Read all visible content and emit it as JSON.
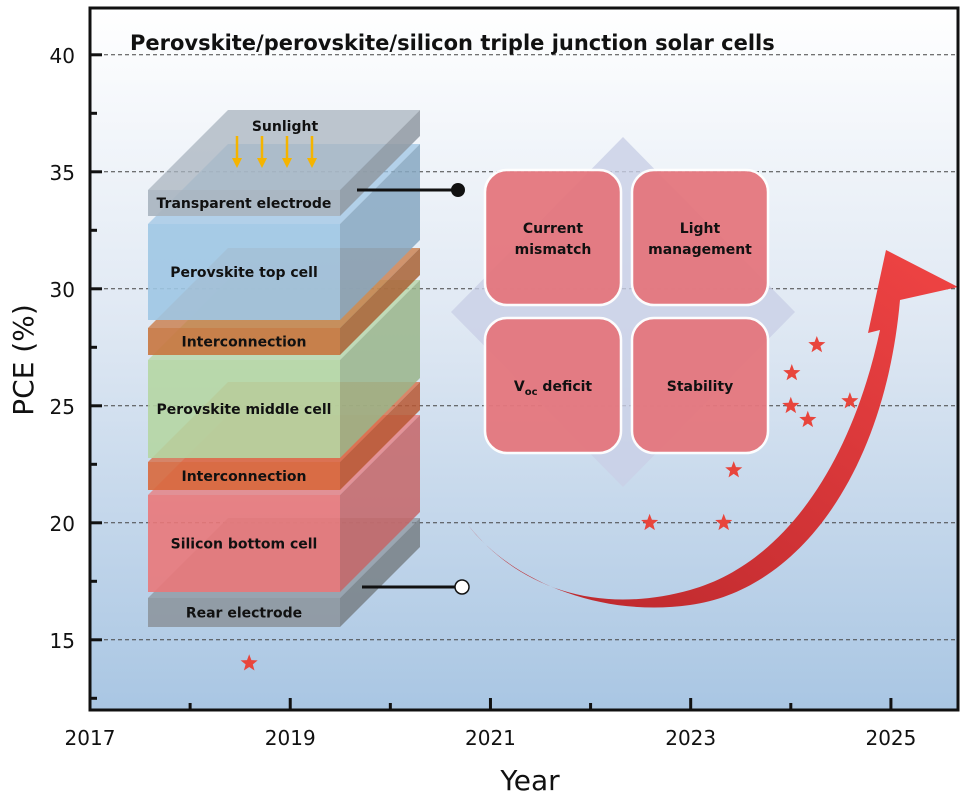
{
  "chart_data": {
    "type": "scatter",
    "title": "Perovskite/perovskite/silicon triple junction solar cells",
    "xlabel": "Year",
    "ylabel": "PCE (%)",
    "xlim": [
      2017,
      2025.67
    ],
    "ylim": [
      12,
      42
    ],
    "x_tick_labels": [
      "2017",
      "2019",
      "2021",
      "2023",
      "2025"
    ],
    "y_tick_labels": [
      "15",
      "20",
      "25",
      "30",
      "35",
      "40"
    ],
    "grid": "horizontal dashed",
    "marker": "star",
    "marker_color": "#e8453c",
    "points": [
      {
        "x": 2018.59,
        "y": 14.0
      },
      {
        "x": 2022.59,
        "y": 20.0
      },
      {
        "x": 2023.33,
        "y": 20.0
      },
      {
        "x": 2023.43,
        "y": 22.25
      },
      {
        "x": 2024.01,
        "y": 26.4
      },
      {
        "x": 2024.0,
        "y": 25.0
      },
      {
        "x": 2024.17,
        "y": 24.4
      },
      {
        "x": 2024.26,
        "y": 27.6
      },
      {
        "x": 2024.59,
        "y": 25.2
      }
    ]
  },
  "device_stack": {
    "sunlight": "Sunlight",
    "layers": [
      {
        "name": "Transparent electrode",
        "color": "#a9b4bf"
      },
      {
        "name": "Perovskite top cell",
        "color": "#9fc6e4"
      },
      {
        "name": "Interconnection",
        "color": "#c8753f"
      },
      {
        "name": "Perovskite middle cell",
        "color": "#b5d6a3"
      },
      {
        "name": "Interconnection",
        "color": "#d8683c"
      },
      {
        "name": "Silicon bottom cell",
        "color": "#e9787a"
      },
      {
        "name": "Rear electrode",
        "color": "#8d969e"
      }
    ]
  },
  "challenges": {
    "items": [
      "Current mismatch",
      "Light management",
      "V",
      "Stability"
    ],
    "voc_sub": "oc",
    "voc_suffix": " deficit",
    "current_1": "Current",
    "current_2": "mismatch",
    "light_1": "Light",
    "light_2": "management",
    "box_color": "#e5777e",
    "diamond_color": "#c9cfe6"
  },
  "arrow_color": "#e53a3a"
}
